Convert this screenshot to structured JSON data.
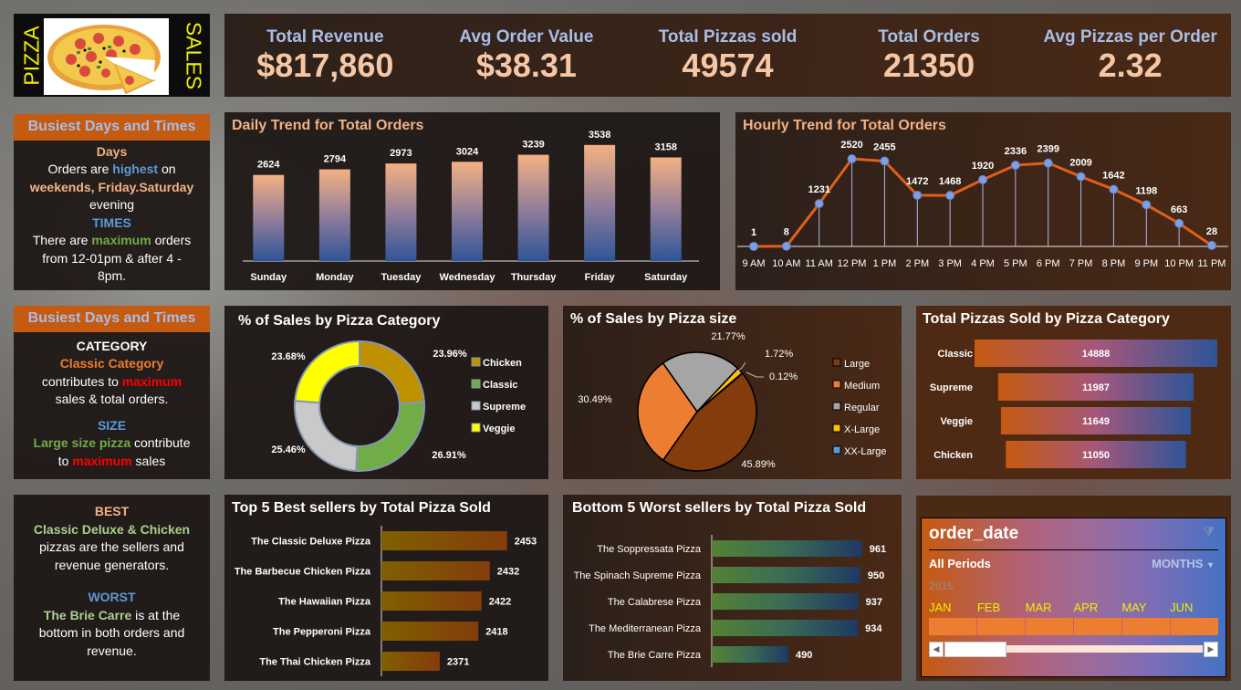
{
  "logo": {
    "left_word": "PIZZA",
    "right_word": "SALES",
    "image": "pizza-image"
  },
  "kpis": [
    {
      "label": "Total Revenue",
      "value": "$817,860"
    },
    {
      "label": "Avg Order Value",
      "value": "$38.31"
    },
    {
      "label": "Total Pizzas sold",
      "value": "49574"
    },
    {
      "label": "Total Orders",
      "value": "21350"
    },
    {
      "label": "Avg Pizzas per Order",
      "value": "2.32"
    }
  ],
  "insights_days": {
    "header": "Busiest Days and Times",
    "days_title": "Days",
    "line1_a": "Orders are ",
    "line1_b": "highest",
    "line1_c": " on",
    "line2": "weekends, Friday.Saturday",
    "line3": "evening",
    "times_title": "TIMES",
    "line4_a": "There are ",
    "line4_b": "maximum",
    "line4_c": " orders",
    "line5": "from 12-01pm & after 4 -",
    "line6": "8pm."
  },
  "insights_category": {
    "header": "Busiest Days and Times",
    "cat_title": "CATEGORY",
    "cat_highlight": "Classic Category",
    "cat_line_a": "contributes to ",
    "cat_line_b": "maximum",
    "cat_line_c": "sales & total orders.",
    "size_title": "SIZE",
    "size_highlight": "Large size pizza",
    "size_line_a": " contribute",
    "size_line_b": "to ",
    "size_line_c": "maximum",
    "size_line_d": " sales"
  },
  "insights_best": {
    "best_title": "BEST",
    "best_highlight": "Classic Deluxe & Chicken",
    "best_line1": "pizzas are the sellers and",
    "best_line2": "revenue generators.",
    "worst_title": "WORST",
    "worst_highlight": "The Brie Carre",
    "worst_line1": " is at the",
    "worst_line2": "bottom in both orders and",
    "worst_line3": "revenue."
  },
  "slicer": {
    "title": "order_date",
    "filter_icon": "clear-filter-icon",
    "selection": "All Periods",
    "level": "MONTHS",
    "year": "2015",
    "months": [
      "JAN",
      "FEB",
      "MAR",
      "APR",
      "MAY",
      "JUN"
    ]
  },
  "chart_data": [
    {
      "id": "daily",
      "type": "bar",
      "title": "Daily Trend for Total Orders",
      "categories": [
        "Sunday",
        "Monday",
        "Tuesday",
        "Wednesday",
        "Thursday",
        "Friday",
        "Saturday"
      ],
      "values": [
        2624,
        2794,
        2973,
        3024,
        3239,
        3538,
        3158
      ],
      "xlabel": "",
      "ylabel": "",
      "ylim": [
        0,
        3700
      ],
      "colors": {
        "top": "#f4b183",
        "bottom": "#2f5597"
      }
    },
    {
      "id": "hourly",
      "type": "line",
      "title": "Hourly Trend for Total Orders",
      "categories": [
        "9 AM",
        "10 AM",
        "11 AM",
        "12 PM",
        "1 PM",
        "2 PM",
        "3 PM",
        "4 PM",
        "5 PM",
        "6 PM",
        "7 PM",
        "8 PM",
        "9 PM",
        "10 PM",
        "11 PM"
      ],
      "values": [
        1,
        8,
        1231,
        2520,
        2455,
        1472,
        1468,
        1920,
        2336,
        2399,
        2009,
        1642,
        1198,
        663,
        28
      ],
      "ylim": [
        0,
        2600
      ],
      "colors": {
        "line": "#e0601a",
        "marker": "#7ea0e0"
      }
    },
    {
      "id": "category_pct",
      "type": "pie",
      "variant": "donut",
      "title": "% of Sales by Pizza Category",
      "labels": [
        "Chicken",
        "Classic",
        "Supreme",
        "Veggie"
      ],
      "values": [
        23.96,
        26.91,
        25.46,
        23.68
      ],
      "value_labels": [
        "23.96%",
        "26.91%",
        "25.46%",
        "23.68%"
      ],
      "colors": [
        "#bf9000",
        "#70ad47",
        "#c9c9c9",
        "#ffff00"
      ],
      "legend": "right"
    },
    {
      "id": "size_pct",
      "type": "pie",
      "title": "% of Sales by Pizza size",
      "labels": [
        "Large",
        "Medium",
        "Regular",
        "X-Large",
        "XX-Large"
      ],
      "values": [
        45.89,
        30.49,
        21.77,
        1.72,
        0.12
      ],
      "value_labels": [
        "45.89%",
        "30.49%",
        "21.77%",
        "1.72%",
        "0.12%"
      ],
      "colors": [
        "#843c0c",
        "#ed7d31",
        "#a5a5a5",
        "#ffc000",
        "#5b9bd5"
      ],
      "legend": "right"
    },
    {
      "id": "category_sold",
      "type": "bar",
      "orientation": "horizontal-funnel",
      "title": "Total Pizzas Sold by Pizza Category",
      "categories": [
        "Classic",
        "Supreme",
        "Veggie",
        "Chicken"
      ],
      "values": [
        14888,
        11987,
        11649,
        11050
      ],
      "colors": {
        "left": "#c55a11",
        "mid": "#a5577a",
        "right": "#2f5597"
      }
    },
    {
      "id": "top5",
      "type": "bar",
      "orientation": "horizontal",
      "title": "Top 5 Best sellers by Total Pizza Sold",
      "categories": [
        "The Classic Deluxe Pizza",
        "The Barbecue Chicken Pizza",
        "The Hawaiian Pizza",
        "The Pepperoni Pizza",
        "The Thai Chicken Pizza"
      ],
      "values": [
        2453,
        2432,
        2422,
        2418,
        2371
      ],
      "xlim": [
        2300,
        2460
      ],
      "colors": {
        "left": "#7f6000",
        "right": "#843c0c"
      }
    },
    {
      "id": "bottom5",
      "type": "bar",
      "orientation": "horizontal",
      "title": "Bottom 5 Worst sellers by Total Pizza Sold",
      "categories": [
        "The Soppressata Pizza",
        "The Spinach Supreme Pizza",
        "The Calabrese Pizza",
        "The Mediterranean Pizza",
        "The Brie Carre Pizza"
      ],
      "values": [
        961,
        950,
        937,
        934,
        490
      ],
      "xlim": [
        0,
        980
      ],
      "colors": {
        "left": "#548235",
        "right": "#1f3864"
      }
    }
  ]
}
